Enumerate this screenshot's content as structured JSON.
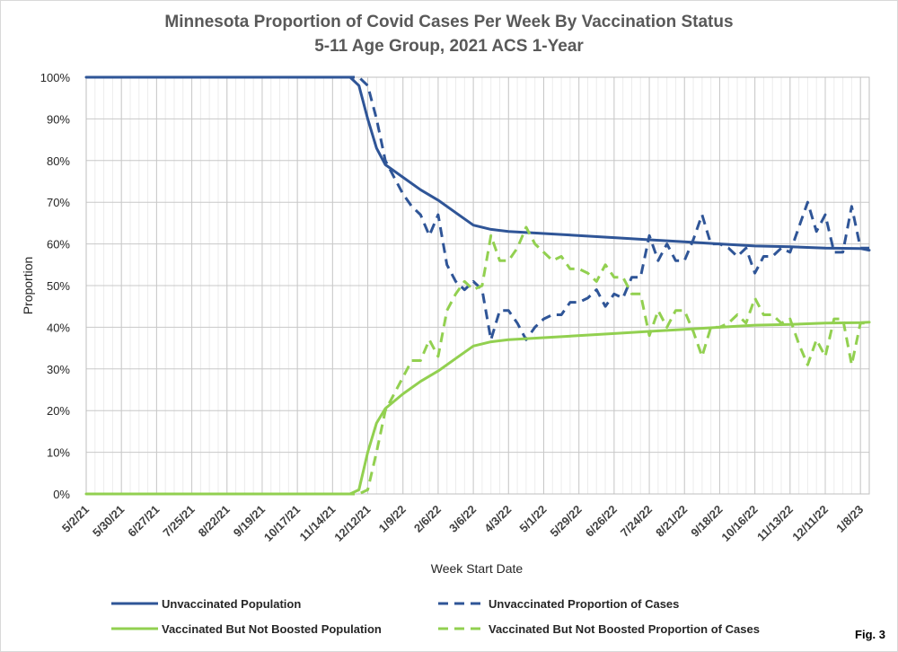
{
  "chart_data": {
    "type": "line",
    "title": "Minnesota Proportion of Covid Cases Per Week By Vaccination Status",
    "subtitle": "5-11 Age Group, 2021 ACS 1-Year",
    "xlabel": "Week Start Date",
    "ylabel": "Proportion",
    "ylim": [
      0,
      1
    ],
    "y_ticks": [
      "0%",
      "10%",
      "20%",
      "30%",
      "40%",
      "50%",
      "60%",
      "70%",
      "80%",
      "90%",
      "100%"
    ],
    "x_tick_labels": [
      "5/2/21",
      "5/30/21",
      "6/27/21",
      "7/25/21",
      "8/22/21",
      "9/19/21",
      "10/17/21",
      "11/14/21",
      "12/12/21",
      "1/9/22",
      "2/6/22",
      "3/6/22",
      "4/3/22",
      "5/1/22",
      "5/29/22",
      "6/26/22",
      "7/24/22",
      "8/21/22",
      "9/18/22",
      "10/16/22",
      "11/13/22",
      "12/11/22",
      "1/8/23"
    ],
    "x_start": "5/2/21",
    "x_end": "1/15/23",
    "grid": true,
    "legend_position": "bottom",
    "series": [
      {
        "name": "Unvaccinated Population",
        "color": "#2f5597",
        "style": "solid",
        "points": [
          [
            "5/2/21",
            1.0
          ],
          [
            "11/28/21",
            1.0
          ],
          [
            "12/5/21",
            0.98
          ],
          [
            "12/12/21",
            0.9
          ],
          [
            "12/19/21",
            0.83
          ],
          [
            "12/26/21",
            0.79
          ],
          [
            "1/9/22",
            0.76
          ],
          [
            "1/23/22",
            0.73
          ],
          [
            "2/6/22",
            0.705
          ],
          [
            "2/20/22",
            0.675
          ],
          [
            "3/6/22",
            0.645
          ],
          [
            "3/20/22",
            0.635
          ],
          [
            "4/3/22",
            0.63
          ],
          [
            "5/1/22",
            0.625
          ],
          [
            "6/26/22",
            0.615
          ],
          [
            "7/24/22",
            0.61
          ],
          [
            "8/21/22",
            0.605
          ],
          [
            "9/18/22",
            0.6
          ],
          [
            "10/16/22",
            0.595
          ],
          [
            "11/13/22",
            0.593
          ],
          [
            "12/11/22",
            0.59
          ],
          [
            "1/8/23",
            0.589
          ],
          [
            "1/15/23",
            0.585
          ]
        ]
      },
      {
        "name": "Unvaccinated Proportion of Cases",
        "color": "#2f5597",
        "style": "dashed",
        "points": [
          [
            "5/2/21",
            1.0
          ],
          [
            "11/28/21",
            1.0
          ],
          [
            "12/5/21",
            1.0
          ],
          [
            "12/12/21",
            0.98
          ],
          [
            "12/19/21",
            0.9
          ],
          [
            "12/26/21",
            0.8
          ],
          [
            "1/2/22",
            0.76
          ],
          [
            "1/9/22",
            0.72
          ],
          [
            "1/16/22",
            0.69
          ],
          [
            "1/23/22",
            0.67
          ],
          [
            "1/30/22",
            0.62
          ],
          [
            "2/6/22",
            0.67
          ],
          [
            "2/13/22",
            0.55
          ],
          [
            "2/20/22",
            0.51
          ],
          [
            "2/27/22",
            0.49
          ],
          [
            "3/6/22",
            0.51
          ],
          [
            "3/13/22",
            0.49
          ],
          [
            "3/20/22",
            0.37
          ],
          [
            "3/27/22",
            0.44
          ],
          [
            "4/3/22",
            0.44
          ],
          [
            "4/10/22",
            0.41
          ],
          [
            "4/17/22",
            0.37
          ],
          [
            "4/24/22",
            0.4
          ],
          [
            "5/1/22",
            0.42
          ],
          [
            "5/8/22",
            0.43
          ],
          [
            "5/15/22",
            0.43
          ],
          [
            "5/22/22",
            0.46
          ],
          [
            "5/29/22",
            0.46
          ],
          [
            "6/5/22",
            0.47
          ],
          [
            "6/12/22",
            0.49
          ],
          [
            "6/19/22",
            0.45
          ],
          [
            "6/26/22",
            0.48
          ],
          [
            "7/3/22",
            0.47
          ],
          [
            "7/10/22",
            0.52
          ],
          [
            "7/17/22",
            0.52
          ],
          [
            "7/24/22",
            0.62
          ],
          [
            "7/31/22",
            0.56
          ],
          [
            "8/7/22",
            0.6
          ],
          [
            "8/14/22",
            0.56
          ],
          [
            "8/21/22",
            0.56
          ],
          [
            "8/28/22",
            0.61
          ],
          [
            "9/4/22",
            0.67
          ],
          [
            "9/11/22",
            0.6
          ],
          [
            "9/18/22",
            0.6
          ],
          [
            "9/25/22",
            0.59
          ],
          [
            "10/2/22",
            0.57
          ],
          [
            "10/9/22",
            0.59
          ],
          [
            "10/16/22",
            0.53
          ],
          [
            "10/23/22",
            0.57
          ],
          [
            "10/30/22",
            0.57
          ],
          [
            "11/6/22",
            0.59
          ],
          [
            "11/13/22",
            0.58
          ],
          [
            "11/20/22",
            0.64
          ],
          [
            "11/27/22",
            0.7
          ],
          [
            "12/4/22",
            0.63
          ],
          [
            "12/11/22",
            0.67
          ],
          [
            "12/18/22",
            0.58
          ],
          [
            "12/25/22",
            0.58
          ],
          [
            "1/1/23",
            0.69
          ],
          [
            "1/8/23",
            0.59
          ],
          [
            "1/15/23",
            0.59
          ]
        ]
      },
      {
        "name": "Vaccinated But Not Boosted Population",
        "color": "#92d050",
        "style": "solid",
        "points": [
          [
            "5/2/21",
            0.0
          ],
          [
            "11/28/21",
            0.0
          ],
          [
            "12/5/21",
            0.01
          ],
          [
            "12/12/21",
            0.1
          ],
          [
            "12/19/21",
            0.17
          ],
          [
            "12/26/21",
            0.205
          ],
          [
            "1/9/22",
            0.24
          ],
          [
            "1/23/22",
            0.27
          ],
          [
            "2/6/22",
            0.295
          ],
          [
            "2/20/22",
            0.325
          ],
          [
            "3/6/22",
            0.355
          ],
          [
            "3/20/22",
            0.365
          ],
          [
            "4/3/22",
            0.37
          ],
          [
            "5/1/22",
            0.375
          ],
          [
            "6/26/22",
            0.385
          ],
          [
            "7/24/22",
            0.39
          ],
          [
            "8/21/22",
            0.395
          ],
          [
            "9/18/22",
            0.4
          ],
          [
            "10/16/22",
            0.405
          ],
          [
            "11/13/22",
            0.407
          ],
          [
            "12/11/22",
            0.41
          ],
          [
            "1/8/23",
            0.411
          ],
          [
            "1/15/23",
            0.412
          ]
        ]
      },
      {
        "name": "Vaccinated But Not Boosted Proportion of Cases",
        "color": "#92d050",
        "style": "dashed",
        "points": [
          [
            "5/2/21",
            0.0
          ],
          [
            "11/28/21",
            0.0
          ],
          [
            "12/5/21",
            0.0
          ],
          [
            "12/12/21",
            0.01
          ],
          [
            "12/19/21",
            0.1
          ],
          [
            "12/26/21",
            0.2
          ],
          [
            "1/2/22",
            0.24
          ],
          [
            "1/9/22",
            0.28
          ],
          [
            "1/16/22",
            0.32
          ],
          [
            "1/23/22",
            0.32
          ],
          [
            "1/30/22",
            0.37
          ],
          [
            "2/6/22",
            0.33
          ],
          [
            "2/13/22",
            0.44
          ],
          [
            "2/20/22",
            0.48
          ],
          [
            "2/27/22",
            0.51
          ],
          [
            "3/6/22",
            0.49
          ],
          [
            "3/13/22",
            0.5
          ],
          [
            "3/20/22",
            0.62
          ],
          [
            "3/27/22",
            0.56
          ],
          [
            "4/3/22",
            0.56
          ],
          [
            "4/10/22",
            0.59
          ],
          [
            "4/17/22",
            0.64
          ],
          [
            "4/24/22",
            0.6
          ],
          [
            "5/1/22",
            0.58
          ],
          [
            "5/8/22",
            0.56
          ],
          [
            "5/15/22",
            0.57
          ],
          [
            "5/22/22",
            0.54
          ],
          [
            "5/29/22",
            0.54
          ],
          [
            "6/5/22",
            0.53
          ],
          [
            "6/12/22",
            0.51
          ],
          [
            "6/19/22",
            0.55
          ],
          [
            "6/26/22",
            0.52
          ],
          [
            "7/3/22",
            0.52
          ],
          [
            "7/10/22",
            0.48
          ],
          [
            "7/17/22",
            0.48
          ],
          [
            "7/24/22",
            0.38
          ],
          [
            "7/31/22",
            0.44
          ],
          [
            "8/7/22",
            0.4
          ],
          [
            "8/14/22",
            0.44
          ],
          [
            "8/21/22",
            0.44
          ],
          [
            "8/28/22",
            0.39
          ],
          [
            "9/4/22",
            0.33
          ],
          [
            "9/11/22",
            0.4
          ],
          [
            "9/18/22",
            0.4
          ],
          [
            "9/25/22",
            0.41
          ],
          [
            "10/2/22",
            0.43
          ],
          [
            "10/9/22",
            0.41
          ],
          [
            "10/16/22",
            0.47
          ],
          [
            "10/23/22",
            0.43
          ],
          [
            "10/30/22",
            0.43
          ],
          [
            "11/6/22",
            0.41
          ],
          [
            "11/13/22",
            0.42
          ],
          [
            "11/20/22",
            0.36
          ],
          [
            "11/27/22",
            0.31
          ],
          [
            "12/4/22",
            0.37
          ],
          [
            "12/11/22",
            0.33
          ],
          [
            "12/18/22",
            0.42
          ],
          [
            "12/25/22",
            0.42
          ],
          [
            "1/1/23",
            0.31
          ],
          [
            "1/8/23",
            0.41
          ],
          [
            "1/15/23",
            0.41
          ]
        ]
      }
    ]
  },
  "figure_label": "Fig. 3"
}
